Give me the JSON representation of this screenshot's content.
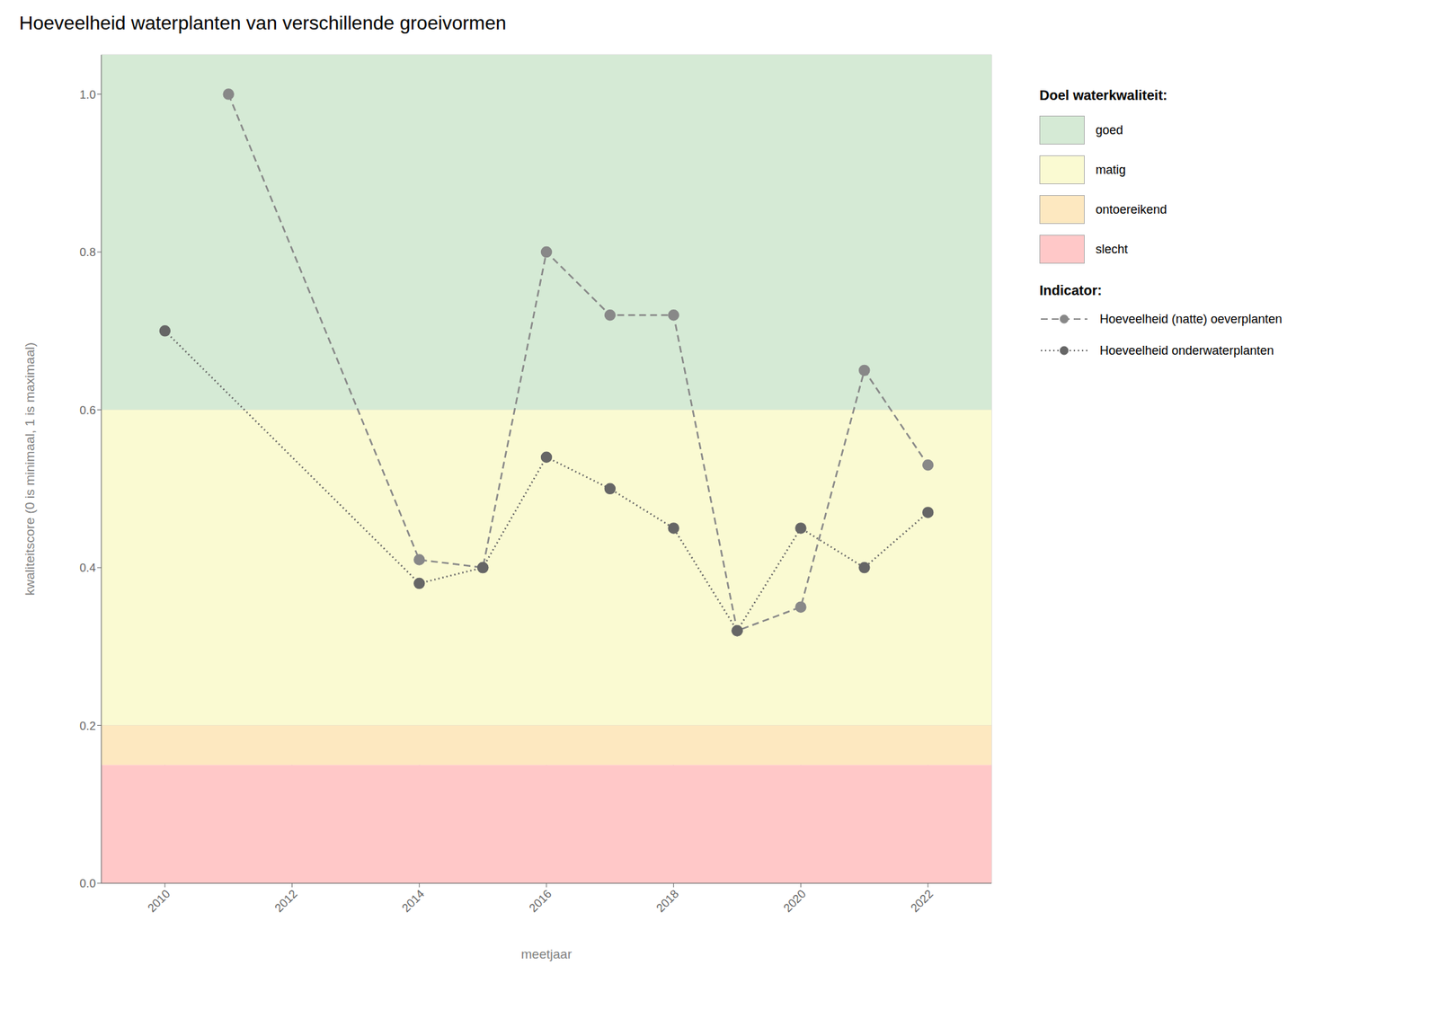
{
  "chart_data": {
    "type": "line",
    "title": "Hoeveelheid waterplanten van verschillende groeivormen",
    "xlabel": "meetjaar",
    "ylabel": "kwaliteitscore (0 is minimaal, 1 is maximaal)",
    "xlim": [
      2009.0,
      2023.0
    ],
    "ylim": [
      0.0,
      1.05
    ],
    "xticks": [
      2010,
      2012,
      2014,
      2016,
      2018,
      2020,
      2022
    ],
    "yticks": [
      {
        "value": 0.0,
        "label": "0.0"
      },
      0.2,
      0.4,
      0.6,
      0.8,
      {
        "value": 1.0,
        "label": "1.0"
      }
    ],
    "grid": true,
    "legend": "right",
    "bands_title": "Doel waterkwaliteit:",
    "bands": [
      {
        "name": "goed",
        "ymin": 0.6,
        "ymax": 1.05,
        "color": "#d5ead5"
      },
      {
        "name": "matig",
        "ymin": 0.2,
        "ymax": 0.6,
        "color": "#fafad2"
      },
      {
        "name": "ontoereikend",
        "ymin": 0.15,
        "ymax": 0.2,
        "color": "#fde8c0"
      },
      {
        "name": "slecht",
        "ymin": 0.0,
        "ymax": 0.15,
        "color": "#ffc8c8"
      }
    ],
    "series_title": "Indicator:",
    "series": [
      {
        "name": "Hoeveelheid (natte) oeverplanten",
        "color": "#888888",
        "line_style": "dashed",
        "marker": "circle",
        "x": [
          2011,
          2014,
          2015,
          2016,
          2017,
          2018,
          2019,
          2020,
          2021,
          2022
        ],
        "values": [
          1.0,
          0.41,
          0.4,
          0.8,
          0.72,
          0.72,
          0.32,
          0.35,
          0.65,
          0.53
        ]
      },
      {
        "name": "Hoeveelheid onderwaterplanten",
        "color": "#666666",
        "line_style": "dotted",
        "marker": "circle",
        "x": [
          2010,
          2014,
          2015,
          2016,
          2017,
          2018,
          2019,
          2020,
          2021,
          2022
        ],
        "values": [
          0.7,
          0.38,
          0.4,
          0.54,
          0.5,
          0.45,
          0.32,
          0.45,
          0.4,
          0.47
        ]
      }
    ]
  }
}
